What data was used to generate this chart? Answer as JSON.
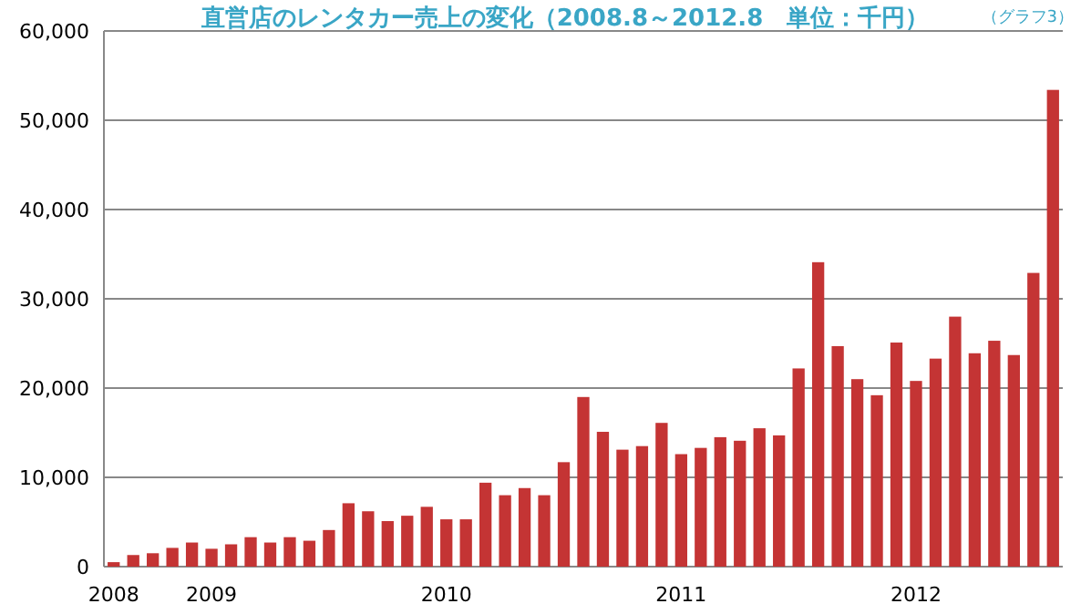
{
  "chart_data": {
    "type": "bar",
    "title": "直営店のレンタカー売上の変化（2008.8～2012.8　単位：千円）",
    "annotations": [
      "（グラフ3）"
    ],
    "categories": [
      "2008",
      null,
      null,
      null,
      null,
      "2009",
      null,
      null,
      null,
      null,
      null,
      null,
      null,
      null,
      null,
      null,
      null,
      "2010",
      null,
      null,
      null,
      null,
      null,
      null,
      null,
      null,
      null,
      null,
      null,
      "2011",
      null,
      null,
      null,
      null,
      null,
      null,
      null,
      null,
      null,
      null,
      null,
      "2012",
      null,
      null,
      null,
      null,
      null,
      null,
      null
    ],
    "values": [
      500,
      1300,
      1500,
      2100,
      2700,
      2000,
      2500,
      3300,
      2700,
      3300,
      2900,
      4100,
      7100,
      6200,
      5100,
      5700,
      6700,
      5300,
      5300,
      9400,
      8000,
      8800,
      8000,
      11700,
      19000,
      15100,
      13100,
      13500,
      16100,
      12600,
      13300,
      14500,
      14100,
      15500,
      14700,
      22200,
      34100,
      24700,
      21000,
      19200,
      25100,
      20800,
      23300,
      28000,
      23900,
      25300,
      23700,
      32900,
      53400
    ],
    "color": "#c43434",
    "ylim": [
      0,
      60000
    ],
    "yticks": [
      {
        "value": 0,
        "label": "0"
      },
      {
        "value": 10000,
        "label": "10,000"
      },
      {
        "value": 20000,
        "label": "20,000"
      },
      {
        "value": 30000,
        "label": "30,000"
      },
      {
        "value": 40000,
        "label": "40,000"
      },
      {
        "value": 50000,
        "label": "50,000"
      },
      {
        "value": 60000,
        "label": "60,000"
      }
    ],
    "grid": "y"
  }
}
